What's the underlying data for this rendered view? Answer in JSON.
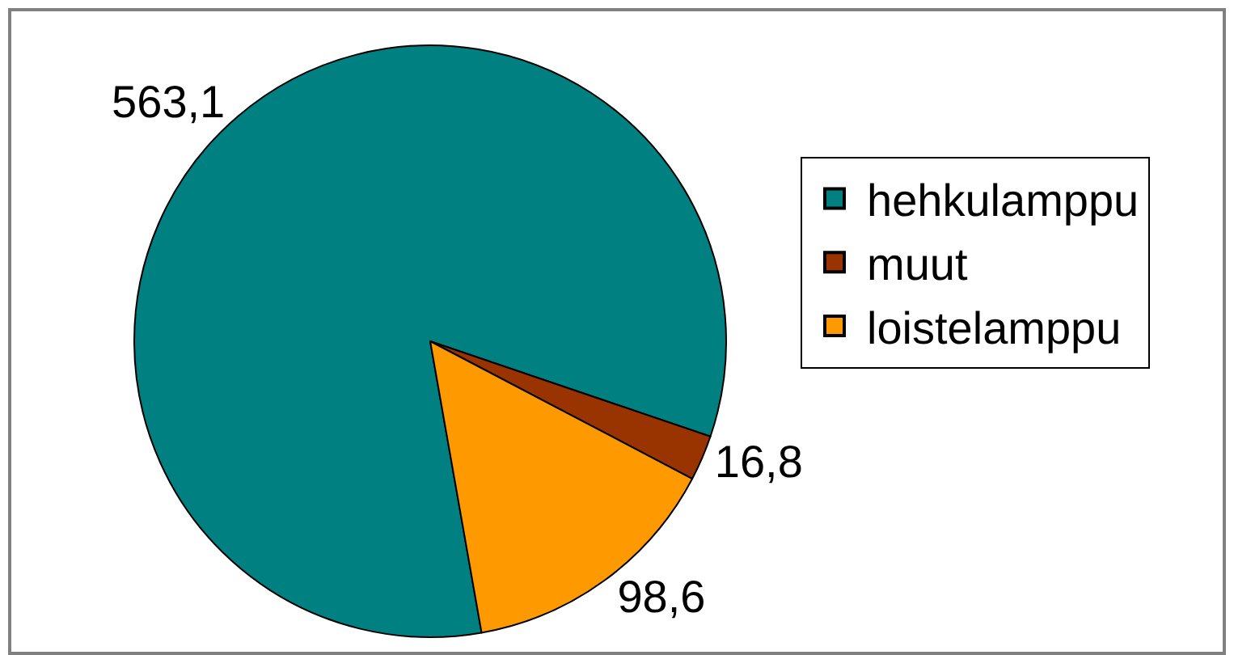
{
  "chart_data": {
    "type": "pie",
    "categories": [
      "hehkulamppu",
      "muut",
      "loistelamppu"
    ],
    "values": [
      563.1,
      16.8,
      98.6
    ],
    "colors": [
      "#008080",
      "#993300",
      "#ff9900"
    ],
    "value_labels": [
      "563,1",
      "16,8",
      "98,6"
    ],
    "legend": "right"
  }
}
